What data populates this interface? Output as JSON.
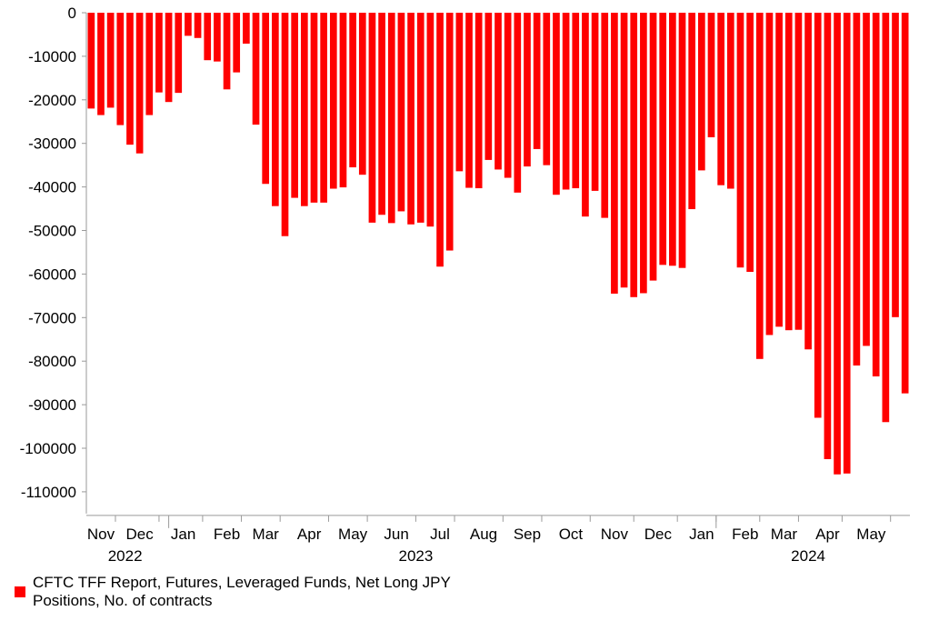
{
  "chart_data": {
    "type": "bar",
    "title": "",
    "xlabel": "",
    "ylabel": "",
    "ylim": [
      -115000,
      0
    ],
    "yticks": [
      0,
      -10000,
      -20000,
      -30000,
      -40000,
      -50000,
      -60000,
      -70000,
      -80000,
      -90000,
      -100000,
      -110000
    ],
    "bar_color": "#ff0000",
    "legend": {
      "placement": "bottom-left",
      "text": "CFTC TFF Report, Futures, Leveraged Funds, Net Long JPY Positions, No. of contracts"
    },
    "series": [
      {
        "name": "CFTC TFF Report, Futures, Leveraged Funds, Net Long JPY Positions, No. of contracts",
        "values": [
          -22000,
          -23500,
          -21800,
          -25800,
          -30300,
          -32300,
          -23500,
          -18300,
          -20500,
          -18400,
          -5300,
          -5800,
          -10900,
          -11200,
          -17600,
          -13700,
          -7100,
          -25700,
          -39300,
          -44400,
          -51300,
          -42500,
          -44400,
          -43600,
          -43600,
          -40400,
          -40100,
          -35500,
          -37200,
          -48200,
          -46400,
          -48300,
          -45600,
          -48600,
          -48200,
          -49100,
          -58300,
          -54600,
          -36400,
          -40200,
          -40300,
          -33800,
          -36000,
          -37900,
          -41300,
          -35300,
          -31300,
          -35000,
          -41800,
          -40600,
          -40300,
          -46800,
          -40900,
          -47100,
          -64500,
          -63100,
          -65300,
          -64400,
          -61500,
          -57900,
          -58100,
          -58600,
          -45100,
          -36200,
          -28600,
          -39600,
          -40400,
          -58500,
          -59500,
          -79500,
          -74000,
          -72100,
          -72900,
          -72800,
          -77300,
          -93000,
          -102500,
          -106000,
          -105800,
          -81000,
          -76500,
          -83500,
          -94000,
          -69900,
          -87400
        ]
      }
    ],
    "month_labels": [
      "Nov",
      "Dec",
      "Jan",
      "Feb",
      "Mar",
      "Apr",
      "May",
      "Jun",
      "Jul",
      "Aug",
      "Sep",
      "Oct",
      "Nov",
      "Dec",
      "Jan",
      "Feb",
      "Mar",
      "Apr",
      "May"
    ],
    "month_label_bar_index": [
      1,
      5,
      9.5,
      14,
      18,
      22.5,
      27,
      31.5,
      36,
      40.5,
      45,
      49.5,
      54,
      58.5,
      63,
      67.5,
      71.5,
      76,
      80.5
    ],
    "month_separator_bar_index": [
      3,
      7.5,
      12,
      16,
      20,
      25,
      29,
      34,
      38,
      43,
      47,
      52,
      56.5,
      61,
      65,
      69.5,
      73.5,
      78,
      83
    ],
    "year_labels": [
      "2022",
      "2023",
      "2024"
    ],
    "year_label_bar_index": [
      3.5,
      33.5,
      74
    ],
    "year_separator_bar_index": [
      8.5,
      65
    ]
  }
}
